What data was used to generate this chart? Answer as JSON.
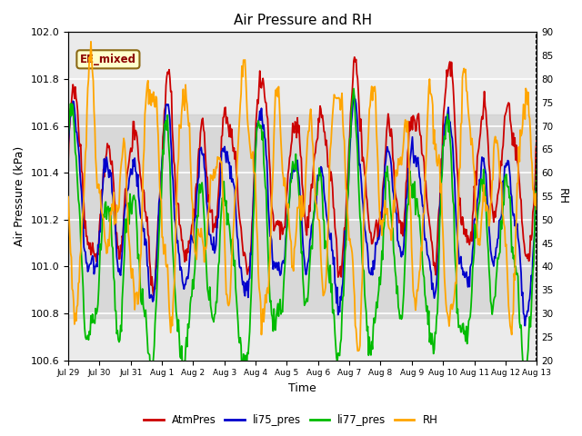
{
  "title": "Air Pressure and RH",
  "xlabel": "Time",
  "ylabel_left": "Air Pressure (kPa)",
  "ylabel_right": "RH",
  "ylim_left": [
    100.6,
    102.0
  ],
  "ylim_right": [
    20,
    90
  ],
  "yticks_left": [
    100.6,
    100.8,
    101.0,
    101.2,
    101.4,
    101.6,
    101.8,
    102.0
  ],
  "yticks_right": [
    20,
    25,
    30,
    35,
    40,
    45,
    50,
    55,
    60,
    65,
    70,
    75,
    80,
    85,
    90
  ],
  "xtick_labels": [
    "Jul 29",
    "Jul 30",
    "Jul 31",
    "Aug 1",
    "Aug 2",
    "Aug 3",
    "Aug 4",
    "Aug 5",
    "Aug 6",
    "Aug 7",
    "Aug 8",
    "Aug 9",
    "Aug 10",
    "Aug 11",
    "Aug 12",
    "Aug 13"
  ],
  "annotation_text": "EE_mixed",
  "annotation_color": "#8B0000",
  "annotation_bg": "#FFFFCC",
  "annotation_border": "#8B6914",
  "colors": {
    "AtmPres": "#CC0000",
    "li75_pres": "#0000CC",
    "li77_pres": "#00BB00",
    "RH": "#FFA500"
  },
  "bg_band_alpha": 0.35,
  "n_points": 600
}
